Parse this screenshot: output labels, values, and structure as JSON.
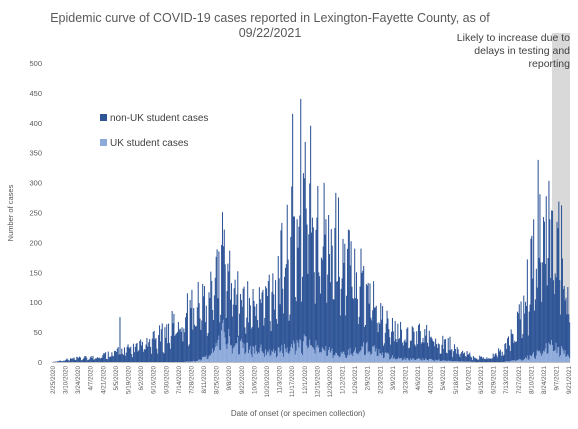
{
  "chart_data": {
    "type": "bar",
    "stacked": true,
    "title_line1": "Epidemic curve of COVID-19 cases reported in Lexington-Fayette County, as of",
    "title_line2": "09/22/2021",
    "xlabel": "Date of onset (or specimen collection)",
    "ylabel": "Number of cases",
    "ylim": [
      0,
      500
    ],
    "yticks": [
      "0",
      "50",
      "100",
      "150",
      "200",
      "250",
      "300",
      "350",
      "400",
      "450",
      "500"
    ],
    "grid": false,
    "legend_position": "upper-left",
    "annotation": {
      "lines": [
        "Likely to increase due to",
        "delays in testing and",
        "reporting"
      ]
    },
    "shaded_region": {
      "from": "9/3/2021",
      "to": "9/22/2021"
    },
    "x_tick_labels": [
      "2/25/2020",
      "3/10/2020",
      "3/24/2020",
      "4/7/2020",
      "4/21/2020",
      "5/5/2020",
      "5/19/2020",
      "6/2/2020",
      "6/16/2020",
      "6/30/2020",
      "7/14/2020",
      "7/28/2020",
      "8/11/2020",
      "8/25/2020",
      "9/8/2020",
      "9/22/2020",
      "10/6/2020",
      "10/20/2020",
      "11/3/2020",
      "11/17/2020",
      "12/1/2020",
      "12/15/2020",
      "12/29/2020",
      "1/12/2021",
      "1/26/2021",
      "2/9/2021",
      "2/23/2021",
      "3/9/2021",
      "3/23/2021",
      "4/6/2021",
      "4/20/2021",
      "5/4/2021",
      "5/18/2021",
      "6/1/2021",
      "6/15/2021",
      "6/29/2021",
      "7/13/2021",
      "7/27/2021",
      "8/10/2021",
      "8/24/2021",
      "9/7/2021",
      "9/21/2021"
    ],
    "anchor_dates": [
      "2020-02-25",
      "2020-03-15",
      "2020-04-10",
      "2020-05-01",
      "2020-05-20",
      "2020-06-10",
      "2020-07-01",
      "2020-07-20",
      "2020-08-05",
      "2020-08-20",
      "2020-09-01",
      "2020-09-10",
      "2020-09-25",
      "2020-10-10",
      "2020-10-25",
      "2020-11-05",
      "2020-11-15",
      "2020-11-25",
      "2020-12-05",
      "2020-12-15",
      "2020-12-25",
      "2021-01-05",
      "2021-01-15",
      "2021-01-25",
      "2021-02-10",
      "2021-02-25",
      "2021-03-10",
      "2021-03-25",
      "2021-04-10",
      "2021-04-25",
      "2021-05-10",
      "2021-05-25",
      "2021-06-10",
      "2021-06-25",
      "2021-07-10",
      "2021-07-20",
      "2021-08-01",
      "2021-08-10",
      "2021-08-20",
      "2021-08-28",
      "2021-09-05",
      "2021-09-12",
      "2021-09-18",
      "2021-09-22"
    ],
    "series": [
      {
        "name": "non-UK student cases",
        "color": "#2f5597",
        "anchor_values": [
          0,
          5,
          8,
          15,
          22,
          30,
          50,
          80,
          95,
          110,
          140,
          110,
          75,
          80,
          110,
          140,
          180,
          200,
          260,
          230,
          200,
          190,
          160,
          150,
          110,
          60,
          45,
          40,
          45,
          40,
          30,
          15,
          8,
          8,
          20,
          40,
          80,
          140,
          190,
          200,
          200,
          170,
          130,
          60
        ]
      },
      {
        "name": "UK student cases",
        "color": "#8eaadb",
        "anchor_values": [
          0,
          0,
          0,
          0,
          0,
          0,
          0,
          0,
          2,
          15,
          60,
          40,
          25,
          22,
          18,
          20,
          25,
          30,
          35,
          25,
          20,
          15,
          15,
          20,
          25,
          15,
          8,
          5,
          5,
          3,
          2,
          1,
          0,
          0,
          0,
          2,
          5,
          10,
          18,
          30,
          25,
          20,
          15,
          5
        ]
      }
    ],
    "peaks": [
      {
        "date": "2020-05-10",
        "value": 75
      },
      {
        "date": "2020-08-28",
        "value": 185
      },
      {
        "date": "2020-11-18",
        "value": 415
      },
      {
        "date": "2020-11-27",
        "value": 440
      },
      {
        "date": "2020-12-08",
        "value": 395
      },
      {
        "date": "2021-01-08",
        "value": 275
      },
      {
        "date": "2021-08-18",
        "value": 338
      },
      {
        "date": "2021-09-10",
        "value": 235
      }
    ]
  }
}
